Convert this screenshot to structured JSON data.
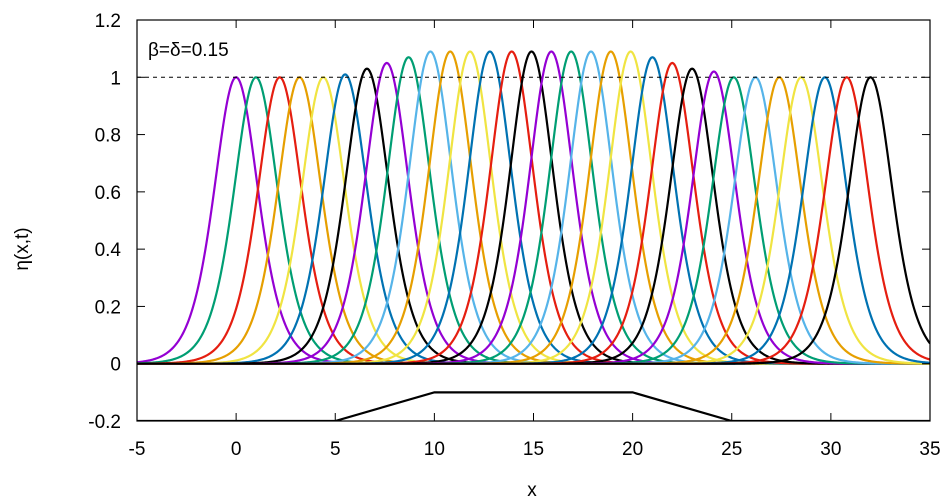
{
  "chart_data": {
    "type": "line",
    "xlabel": "x",
    "ylabel": "η(x,t)",
    "xlim": [
      -5,
      35
    ],
    "ylim": [
      -0.2,
      1.2
    ],
    "xticks": [
      -5,
      0,
      5,
      10,
      15,
      20,
      25,
      30,
      35
    ],
    "yticks": [
      -0.2,
      0,
      0.2,
      0.4,
      0.6,
      0.8,
      1,
      1.2
    ],
    "ytick_labels": [
      "-0.2",
      "0",
      "0.2",
      "0.4",
      "0.6",
      "0.8",
      "1",
      "1.2"
    ],
    "xtick_labels": [
      "-5",
      "0",
      "5",
      "10",
      "15",
      "20",
      "25",
      "30",
      "35"
    ],
    "grid": false,
    "annotation": "β=δ=0.15",
    "reference_line": {
      "y": 1,
      "style": "dashed"
    },
    "series": [
      {
        "peak_x": 0.0,
        "peak_y": 1.0,
        "color": "#9400d3"
      },
      {
        "peak_x": 1.0,
        "peak_y": 1.0,
        "color": "#009e73"
      },
      {
        "peak_x": 2.2,
        "peak_y": 1.0,
        "color": "#e51e10"
      },
      {
        "peak_x": 3.2,
        "peak_y": 1.0,
        "color": "#e69f00"
      },
      {
        "peak_x": 4.4,
        "peak_y": 1.0,
        "color": "#f0e442"
      },
      {
        "peak_x": 5.5,
        "peak_y": 1.01,
        "color": "#0072b2"
      },
      {
        "peak_x": 6.6,
        "peak_y": 1.03,
        "color": "#000000"
      },
      {
        "peak_x": 7.6,
        "peak_y": 1.05,
        "color": "#9400d3"
      },
      {
        "peak_x": 8.7,
        "peak_y": 1.07,
        "color": "#009e73"
      },
      {
        "peak_x": 9.8,
        "peak_y": 1.09,
        "color": "#56b4e9"
      },
      {
        "peak_x": 10.8,
        "peak_y": 1.09,
        "color": "#e69f00"
      },
      {
        "peak_x": 11.8,
        "peak_y": 1.09,
        "color": "#f0e442"
      },
      {
        "peak_x": 12.8,
        "peak_y": 1.09,
        "color": "#0072b2"
      },
      {
        "peak_x": 13.9,
        "peak_y": 1.09,
        "color": "#e51e10"
      },
      {
        "peak_x": 14.9,
        "peak_y": 1.09,
        "color": "#000000"
      },
      {
        "peak_x": 15.9,
        "peak_y": 1.09,
        "color": "#9400d3"
      },
      {
        "peak_x": 16.9,
        "peak_y": 1.09,
        "color": "#009e73"
      },
      {
        "peak_x": 17.9,
        "peak_y": 1.09,
        "color": "#56b4e9"
      },
      {
        "peak_x": 18.9,
        "peak_y": 1.09,
        "color": "#e69f00"
      },
      {
        "peak_x": 19.9,
        "peak_y": 1.09,
        "color": "#f0e442"
      },
      {
        "peak_x": 21.0,
        "peak_y": 1.07,
        "color": "#0072b2"
      },
      {
        "peak_x": 22.0,
        "peak_y": 1.05,
        "color": "#e51e10"
      },
      {
        "peak_x": 23.0,
        "peak_y": 1.03,
        "color": "#000000"
      },
      {
        "peak_x": 24.1,
        "peak_y": 1.02,
        "color": "#9400d3"
      },
      {
        "peak_x": 25.1,
        "peak_y": 1.0,
        "color": "#009e73"
      },
      {
        "peak_x": 26.2,
        "peak_y": 1.0,
        "color": "#56b4e9"
      },
      {
        "peak_x": 27.4,
        "peak_y": 1.0,
        "color": "#e69f00"
      },
      {
        "peak_x": 28.5,
        "peak_y": 1.0,
        "color": "#f0e442"
      },
      {
        "peak_x": 29.7,
        "peak_y": 1.0,
        "color": "#0072b2"
      },
      {
        "peak_x": 30.8,
        "peak_y": 1.0,
        "color": "#e51e10"
      },
      {
        "peak_x": 32.0,
        "peak_y": 1.0,
        "color": "#000000"
      }
    ],
    "pulse_width": 1.5,
    "bottom_profile": {
      "x": [
        -5,
        5,
        10,
        20,
        25,
        35
      ],
      "y": [
        -0.2,
        -0.2,
        -0.1,
        -0.1,
        -0.2,
        -0.2
      ]
    }
  }
}
